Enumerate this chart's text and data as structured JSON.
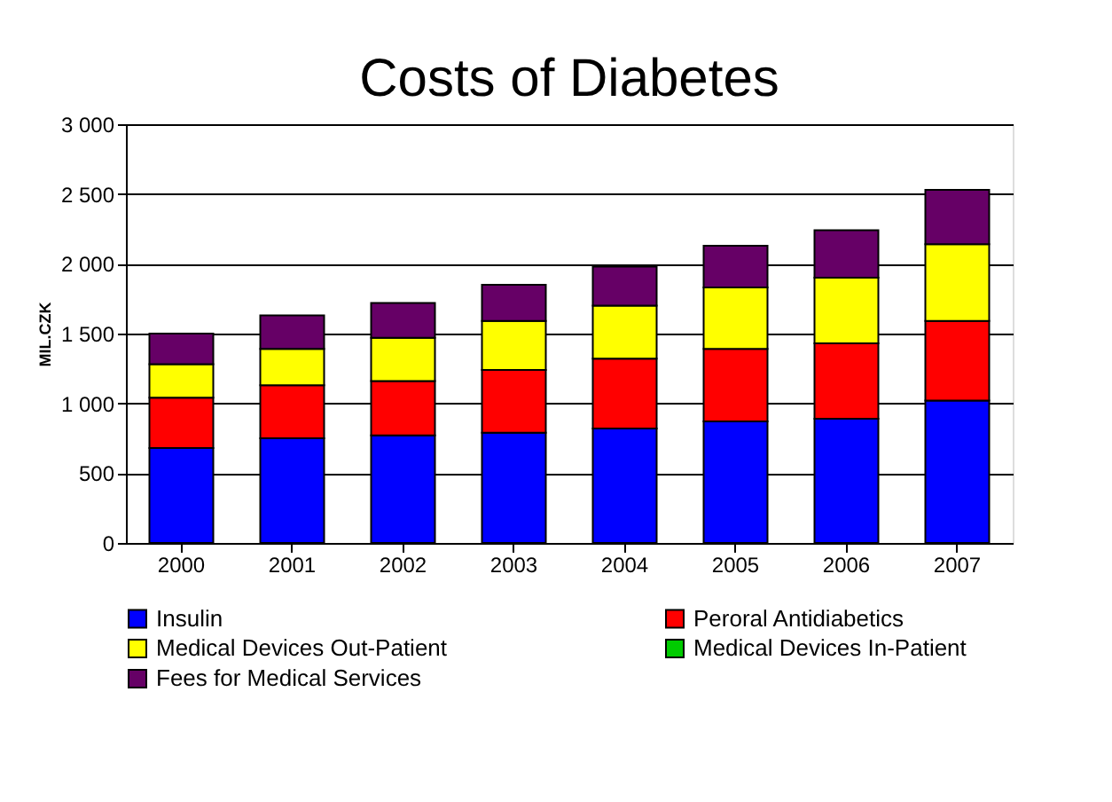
{
  "chart_data": {
    "type": "bar",
    "title": "Costs of Diabetes",
    "ylabel": "MIL.CZK",
    "stacked": true,
    "categories": [
      "2000",
      "2001",
      "2002",
      "2003",
      "2004",
      "2005",
      "2006",
      "2007"
    ],
    "series": [
      {
        "name": "Insulin",
        "color": "#0000ff",
        "values": [
          680,
          750,
          770,
          790,
          820,
          870,
          890,
          1020
        ]
      },
      {
        "name": "Peroral Antidiabetics",
        "color": "#ff0000",
        "values": [
          360,
          380,
          390,
          450,
          500,
          520,
          540,
          570
        ]
      },
      {
        "name": "Medical Devices Out-Patient",
        "color": "#ffff00",
        "values": [
          240,
          260,
          310,
          350,
          380,
          440,
          470,
          550
        ]
      },
      {
        "name": "Medical Devices In-Patient",
        "color": "#00cc00",
        "values": [
          null,
          null,
          null,
          null,
          null,
          null,
          null,
          null
        ]
      },
      {
        "name": "Fees for Medical Services",
        "color": "#660066",
        "values": [
          220,
          240,
          250,
          260,
          280,
          300,
          340,
          390
        ]
      }
    ],
    "ylim": [
      0,
      3000
    ],
    "yticks": [
      {
        "value": 0,
        "label": "0"
      },
      {
        "value": 500,
        "label": "500"
      },
      {
        "value": 1000,
        "label": "1 000"
      },
      {
        "value": 1500,
        "label": "1 500"
      },
      {
        "value": 2000,
        "label": "2 000"
      },
      {
        "value": 2500,
        "label": "2 500"
      },
      {
        "value": 3000,
        "label": "3 000"
      }
    ],
    "grid": "y",
    "legend": "bottom"
  }
}
